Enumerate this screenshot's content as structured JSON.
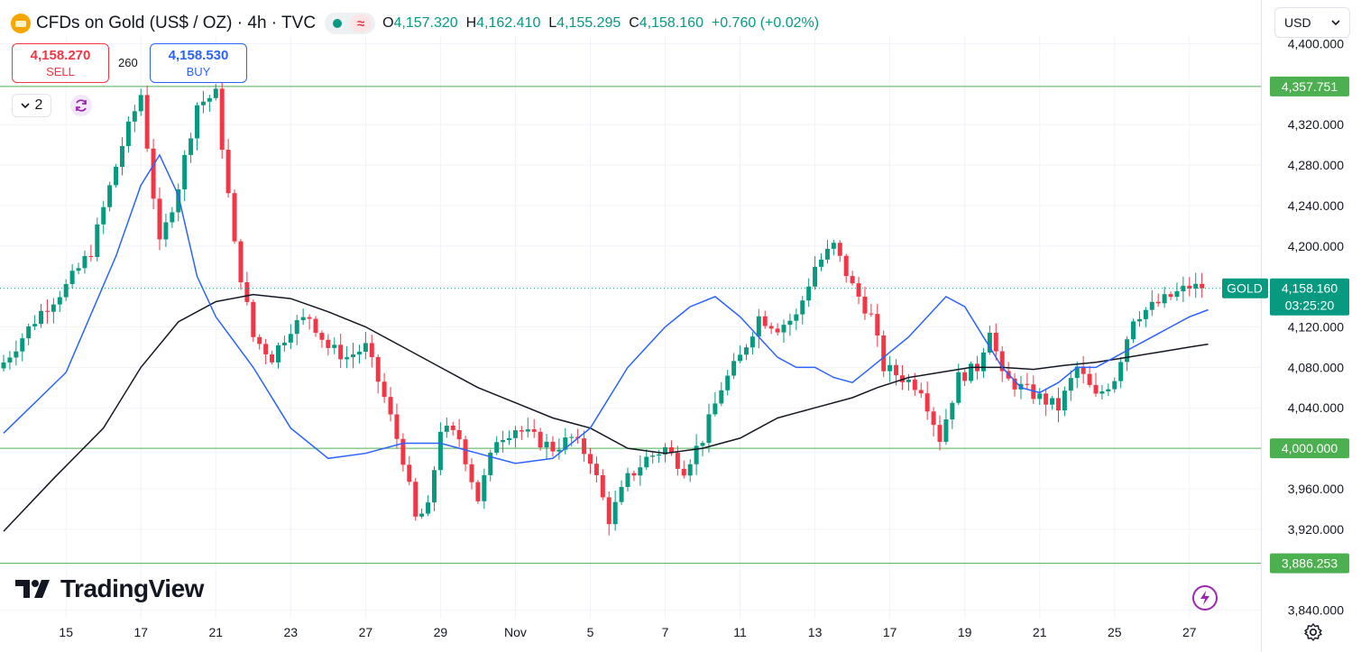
{
  "header": {
    "title": "CFDs on Gold (US$ / OZ) · 4h · TVC",
    "ohlc": {
      "o_label": "O",
      "o": "4,157.320",
      "h_label": "H",
      "h": "4,162.410",
      "l_label": "L",
      "l": "4,155.295",
      "c_label": "C",
      "c": "4,158.160",
      "change": "+0.760 (+0.02%)"
    },
    "wave_glyph": "≈"
  },
  "trade": {
    "sell_price": "4,158.270",
    "sell_label": "SELL",
    "buy_price": "4,158.530",
    "buy_label": "BUY",
    "spread": "260"
  },
  "controls": {
    "indicator_count": "2",
    "currency": "USD"
  },
  "branding": {
    "logo_text": "TradingView"
  },
  "colors": {
    "up": "#089981",
    "down": "#f23645",
    "ma_fast": "#2962ff",
    "ma_slow": "#131722",
    "level": "#4caf50",
    "accent": "#9c27b0"
  },
  "chart_data": {
    "type": "candlestick",
    "symbol": "GOLD",
    "timeframe": "4h",
    "ylim": [
      3840,
      4400
    ],
    "y_ticks": [
      "4,400.000",
      "4,320.000",
      "4,280.000",
      "4,240.000",
      "4,200.000",
      "4,120.000",
      "4,080.000",
      "4,040.000",
      "3,960.000",
      "3,920.000",
      "3,840.000"
    ],
    "y_tick_values": [
      4400,
      4320,
      4280,
      4240,
      4200,
      4120,
      4080,
      4040,
      3960,
      3920,
      3840
    ],
    "x_ticks": [
      "15",
      "17",
      "21",
      "23",
      "27",
      "29",
      "Nov",
      "5",
      "7",
      "11",
      "13",
      "17",
      "19",
      "21",
      "25",
      "27"
    ],
    "x_tick_bar_index": [
      10,
      22,
      34,
      46,
      58,
      70,
      82,
      94,
      106,
      118,
      130,
      142,
      154,
      166,
      178,
      190
    ],
    "horizontal_levels": [
      {
        "value": 4357.751,
        "label": "4,357.751"
      },
      {
        "value": 4000.0,
        "label": "4,000.000"
      },
      {
        "value": 3886.253,
        "label": "3,886.253"
      }
    ],
    "last_price": {
      "symbol": "GOLD",
      "value": 4158.16,
      "label": "4,158.160",
      "countdown": "03:25:20"
    },
    "anchors_close": [
      [
        0,
        4085
      ],
      [
        6,
        4135
      ],
      [
        10,
        4160
      ],
      [
        14,
        4195
      ],
      [
        19,
        4300
      ],
      [
        22,
        4350
      ],
      [
        25,
        4200
      ],
      [
        28,
        4260
      ],
      [
        31,
        4340
      ],
      [
        34,
        4350
      ],
      [
        37,
        4200
      ],
      [
        40,
        4110
      ],
      [
        43,
        4090
      ],
      [
        46,
        4120
      ],
      [
        49,
        4130
      ],
      [
        52,
        4100
      ],
      [
        55,
        4090
      ],
      [
        58,
        4100
      ],
      [
        61,
        4050
      ],
      [
        64,
        3990
      ],
      [
        66,
        3930
      ],
      [
        68,
        3940
      ],
      [
        70,
        4020
      ],
      [
        73,
        4010
      ],
      [
        76,
        3950
      ],
      [
        79,
        4010
      ],
      [
        82,
        4020
      ],
      [
        85,
        4010
      ],
      [
        88,
        4000
      ],
      [
        91,
        4010
      ],
      [
        94,
        3990
      ],
      [
        97,
        3930
      ],
      [
        100,
        3970
      ],
      [
        103,
        3990
      ],
      [
        106,
        4000
      ],
      [
        109,
        3980
      ],
      [
        112,
        4010
      ],
      [
        115,
        4060
      ],
      [
        118,
        4090
      ],
      [
        121,
        4130
      ],
      [
        124,
        4120
      ],
      [
        127,
        4130
      ],
      [
        130,
        4180
      ],
      [
        133,
        4200
      ],
      [
        136,
        4160
      ],
      [
        139,
        4130
      ],
      [
        141,
        4080
      ],
      [
        144,
        4070
      ],
      [
        147,
        4060
      ],
      [
        150,
        4010
      ],
      [
        153,
        4070
      ],
      [
        156,
        4080
      ],
      [
        158,
        4120
      ],
      [
        160,
        4070
      ],
      [
        163,
        4060
      ],
      [
        166,
        4050
      ],
      [
        169,
        4040
      ],
      [
        172,
        4080
      ],
      [
        175,
        4050
      ],
      [
        178,
        4070
      ],
      [
        181,
        4130
      ],
      [
        184,
        4140
      ],
      [
        187,
        4150
      ],
      [
        190,
        4160
      ],
      [
        192,
        4158
      ]
    ],
    "ma_fast_pts": [
      [
        0,
        4015
      ],
      [
        10,
        4075
      ],
      [
        18,
        4190
      ],
      [
        22,
        4260
      ],
      [
        25,
        4290
      ],
      [
        28,
        4250
      ],
      [
        31,
        4170
      ],
      [
        34,
        4130
      ],
      [
        40,
        4080
      ],
      [
        46,
        4020
      ],
      [
        52,
        3990
      ],
      [
        58,
        3995
      ],
      [
        64,
        4005
      ],
      [
        70,
        4005
      ],
      [
        76,
        3995
      ],
      [
        82,
        3985
      ],
      [
        88,
        3990
      ],
      [
        94,
        4020
      ],
      [
        100,
        4080
      ],
      [
        106,
        4120
      ],
      [
        110,
        4140
      ],
      [
        114,
        4150
      ],
      [
        118,
        4130
      ],
      [
        121,
        4110
      ],
      [
        124,
        4090
      ],
      [
        127,
        4080
      ],
      [
        130,
        4080
      ],
      [
        133,
        4070
      ],
      [
        136,
        4065
      ],
      [
        139,
        4080
      ],
      [
        142,
        4095
      ],
      [
        145,
        4110
      ],
      [
        148,
        4130
      ],
      [
        151,
        4150
      ],
      [
        154,
        4140
      ],
      [
        157,
        4110
      ],
      [
        160,
        4080
      ],
      [
        163,
        4060
      ],
      [
        166,
        4055
      ],
      [
        169,
        4065
      ],
      [
        172,
        4080
      ],
      [
        175,
        4080
      ],
      [
        178,
        4090
      ],
      [
        181,
        4100
      ],
      [
        184,
        4110
      ],
      [
        187,
        4120
      ],
      [
        190,
        4130
      ],
      [
        193,
        4137
      ]
    ],
    "ma_slow_pts": [
      [
        0,
        3918
      ],
      [
        8,
        3970
      ],
      [
        16,
        4020
      ],
      [
        22,
        4080
      ],
      [
        28,
        4125
      ],
      [
        34,
        4145
      ],
      [
        40,
        4152
      ],
      [
        46,
        4148
      ],
      [
        52,
        4135
      ],
      [
        58,
        4120
      ],
      [
        64,
        4100
      ],
      [
        70,
        4080
      ],
      [
        76,
        4060
      ],
      [
        82,
        4045
      ],
      [
        88,
        4030
      ],
      [
        94,
        4020
      ],
      [
        100,
        4000
      ],
      [
        106,
        3995
      ],
      [
        112,
        4000
      ],
      [
        118,
        4010
      ],
      [
        124,
        4030
      ],
      [
        130,
        4040
      ],
      [
        136,
        4050
      ],
      [
        140,
        4060
      ],
      [
        145,
        4070
      ],
      [
        150,
        4075
      ],
      [
        155,
        4080
      ],
      [
        160,
        4080
      ],
      [
        165,
        4078
      ],
      [
        170,
        4082
      ],
      [
        175,
        4085
      ],
      [
        180,
        4090
      ],
      [
        185,
        4095
      ],
      [
        190,
        4100
      ],
      [
        193,
        4103
      ]
    ]
  }
}
